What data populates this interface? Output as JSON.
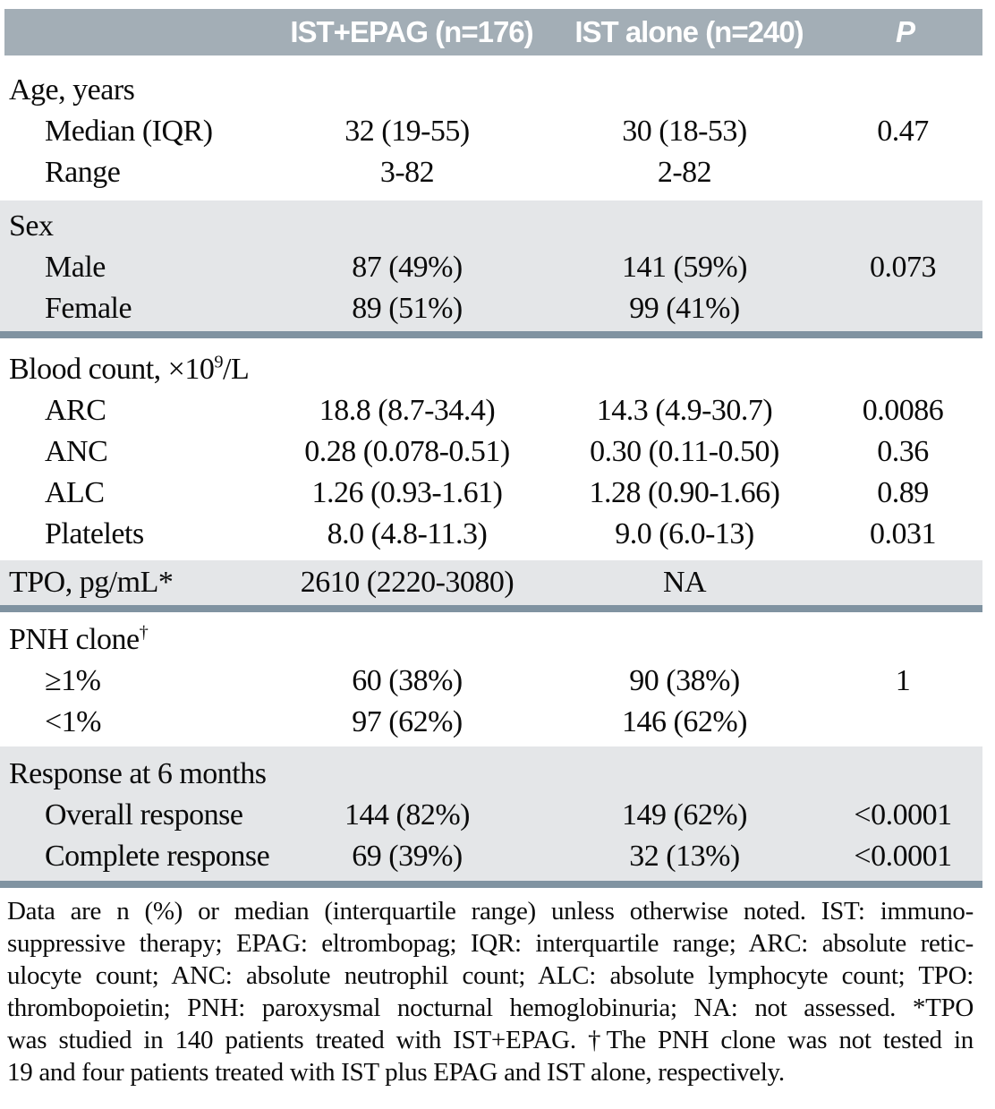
{
  "colors": {
    "header_bg": "#a3aeb6",
    "header_text": "#ffffff",
    "band_bg": "#e4e6e8",
    "divider": "#8093a1",
    "body_text": "#0b0b0b"
  },
  "header": {
    "group1": "IST+EPAG (n=176)",
    "group2": "IST alone (n=240)",
    "p": "P"
  },
  "sections": [
    {
      "title_pre": "Age, years",
      "title_sup": "",
      "title_post": "",
      "title_v1": "",
      "title_v2": "",
      "title_p": "",
      "rows": [
        {
          "label": "Median (IQR)",
          "v1": "32 (19-55)",
          "v2": "30 (18-53)",
          "p": "0.47"
        },
        {
          "label": "Range",
          "v1": "3-82",
          "v2": "2-82",
          "p": ""
        }
      ]
    },
    {
      "title_pre": "Sex",
      "title_sup": "",
      "title_post": "",
      "title_v1": "",
      "title_v2": "",
      "title_p": "",
      "rows": [
        {
          "label": "Male",
          "v1": "87 (49%)",
          "v2": "141 (59%)",
          "p": "0.073"
        },
        {
          "label": "Female",
          "v1": "89 (51%)",
          "v2": "99 (41%)",
          "p": ""
        }
      ]
    },
    {
      "title_pre": "Blood count, ×10",
      "title_sup": "9",
      "title_post": "/L",
      "title_v1": "",
      "title_v2": "",
      "title_p": "",
      "rows": [
        {
          "label": "ARC",
          "v1": "18.8 (8.7-34.4)",
          "v2": "14.3 (4.9-30.7)",
          "p": "0.0086"
        },
        {
          "label": "ANC",
          "v1": "0.28 (0.078-0.51)",
          "v2": "0.30 (0.11-0.50)",
          "p": "0.36"
        },
        {
          "label": "ALC",
          "v1": "1.26 (0.93-1.61)",
          "v2": "1.28 (0.90-1.66)",
          "p": "0.89"
        },
        {
          "label": "Platelets",
          "v1": "8.0 (4.8-11.3)",
          "v2": "9.0 (6.0-13)",
          "p": "0.031"
        }
      ]
    },
    {
      "title_pre": "TPO, pg/mL*",
      "title_sup": "",
      "title_post": "",
      "title_v1": "2610 (2220-3080)",
      "title_v2": "NA",
      "title_p": "",
      "rows": []
    },
    {
      "title_pre": "PNH clone",
      "title_sup": "†",
      "title_post": "",
      "title_v1": "",
      "title_v2": "",
      "title_p": "",
      "rows": [
        {
          "label": "≥1%",
          "v1": "60 (38%)",
          "v2": "90 (38%)",
          "p": "1"
        },
        {
          "label": "<1%",
          "v1": "97 (62%)",
          "v2": "146 (62%)",
          "p": ""
        }
      ]
    },
    {
      "title_pre": "Response at 6 months",
      "title_sup": "",
      "title_post": "",
      "title_v1": "",
      "title_v2": "",
      "title_p": "",
      "rows": [
        {
          "label": "Overall response",
          "v1": "144 (82%)",
          "v2": "149 (62%)",
          "p": "<0.0001"
        },
        {
          "label": "Complete response",
          "v1": "69 (39%)",
          "v2": "32 (13%)",
          "p": "<0.0001"
        }
      ]
    }
  ],
  "footnote_lines": [
    "Data are n (%) or median (interquartile range) unless otherwise noted. IST: immuno-",
    "suppressive therapy; EPAG: eltrombopag; IQR: interquartile range; ARC: absolute retic-",
    "ulocyte count; ANC: absolute neutrophil count; ALC: absolute lymphocyte count; TPO:",
    "thrombopoietin; PNH: paroxysmal nocturnal hemoglobinuria; NA: not assessed. *TPO",
    "was studied in 140 patients treated with IST+EPAG. †The PNH clone was not tested in",
    "19 and four patients treated with IST plus EPAG and IST alone, respectively."
  ]
}
